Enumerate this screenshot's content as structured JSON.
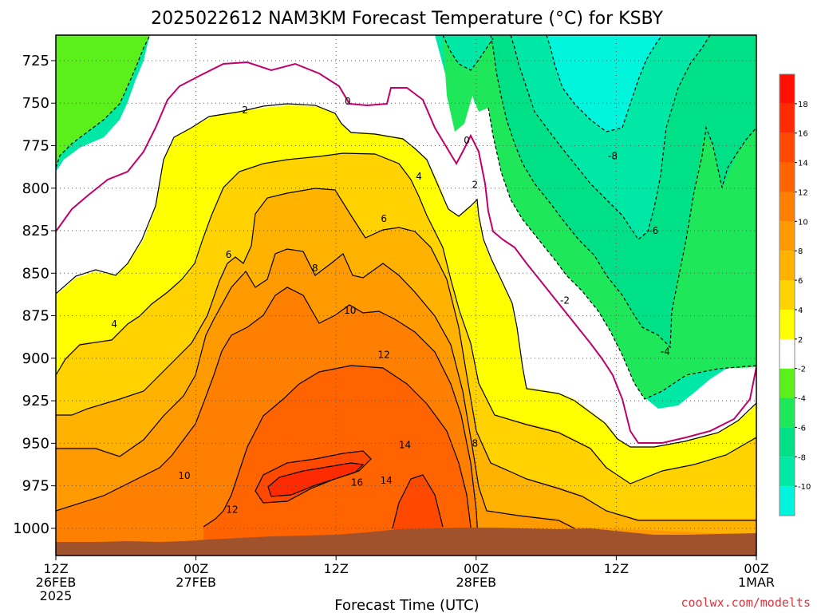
{
  "chart_data": {
    "type": "heatmap",
    "title": "2025022612 NAM3KM Forecast Temperature (°C) for KSBY",
    "xlabel": "Forecast Time (UTC)",
    "ylabel": "",
    "credit": "coolwx.com/modelts",
    "x_ticks": [
      {
        "hour": 0,
        "lines": [
          "12Z",
          "26FEB",
          "2025"
        ]
      },
      {
        "hour": 12,
        "lines": [
          "00Z",
          "27FEB"
        ]
      },
      {
        "hour": 24,
        "lines": [
          "12Z"
        ]
      },
      {
        "hour": 36,
        "lines": [
          "00Z",
          "28FEB"
        ]
      },
      {
        "hour": 48,
        "lines": [
          "12Z"
        ]
      },
      {
        "hour": 60,
        "lines": [
          "00Z",
          "1MAR"
        ]
      }
    ],
    "xlim_hours": [
      0,
      60
    ],
    "y_ticks": [
      725,
      750,
      775,
      800,
      825,
      850,
      875,
      900,
      925,
      950,
      975,
      1000
    ],
    "ylim_hPa": [
      710,
      1016
    ],
    "y_scale": "pressure, reversed",
    "grid": true,
    "colorbar": {
      "levels": [
        -12,
        -10,
        -8,
        -6,
        -4,
        -2,
        2,
        4,
        6,
        8,
        10,
        12,
        14,
        16,
        18,
        20
      ],
      "labels": [
        "-10",
        "-8",
        "-6",
        "-4",
        "-2",
        "2",
        "4",
        "6",
        "8",
        "10",
        "12",
        "14",
        "16",
        "18"
      ],
      "colors": [
        "#00f5dc",
        "#00e8a6",
        "#00e086",
        "#1ee85a",
        "#5cf01a",
        "#ffffff",
        "#ffff00",
        "#ffd200",
        "#ffb300",
        "#ff9a00",
        "#ff7f00",
        "#ff6400",
        "#ff4800",
        "#ff2a00",
        "#ff1000"
      ]
    },
    "contour_labels": [
      {
        "text": "0",
        "hour": 25,
        "hPa": 749
      },
      {
        "text": "0",
        "hour": 35.2,
        "hPa": 772
      },
      {
        "text": "2",
        "hour": 16.2,
        "hPa": 754
      },
      {
        "text": "2",
        "hour": 35.9,
        "hPa": 798
      },
      {
        "text": "4",
        "hour": 31.1,
        "hPa": 793
      },
      {
        "text": "4",
        "hour": 5,
        "hPa": 880
      },
      {
        "text": "6",
        "hour": 28.1,
        "hPa": 818
      },
      {
        "text": "6",
        "hour": 14.8,
        "hPa": 839
      },
      {
        "text": "8",
        "hour": 22.2,
        "hPa": 847
      },
      {
        "text": "8",
        "hour": 35.9,
        "hPa": 950
      },
      {
        "text": "10",
        "hour": 25.2,
        "hPa": 872
      },
      {
        "text": "10",
        "hour": 11,
        "hPa": 969
      },
      {
        "text": "12",
        "hour": 28.1,
        "hPa": 898
      },
      {
        "text": "12",
        "hour": 15.1,
        "hPa": 989
      },
      {
        "text": "14",
        "hour": 29.9,
        "hPa": 951
      },
      {
        "text": "14",
        "hour": 28.3,
        "hPa": 972
      },
      {
        "text": "16",
        "hour": 25.8,
        "hPa": 973
      },
      {
        "text": "-2",
        "hour": 43.6,
        "hPa": 866
      },
      {
        "text": "-4",
        "hour": 52.2,
        "hPa": 896
      },
      {
        "text": "-6",
        "hour": 51.2,
        "hPa": 825
      },
      {
        "text": "-8",
        "hour": 47.7,
        "hPa": 781
      }
    ]
  }
}
